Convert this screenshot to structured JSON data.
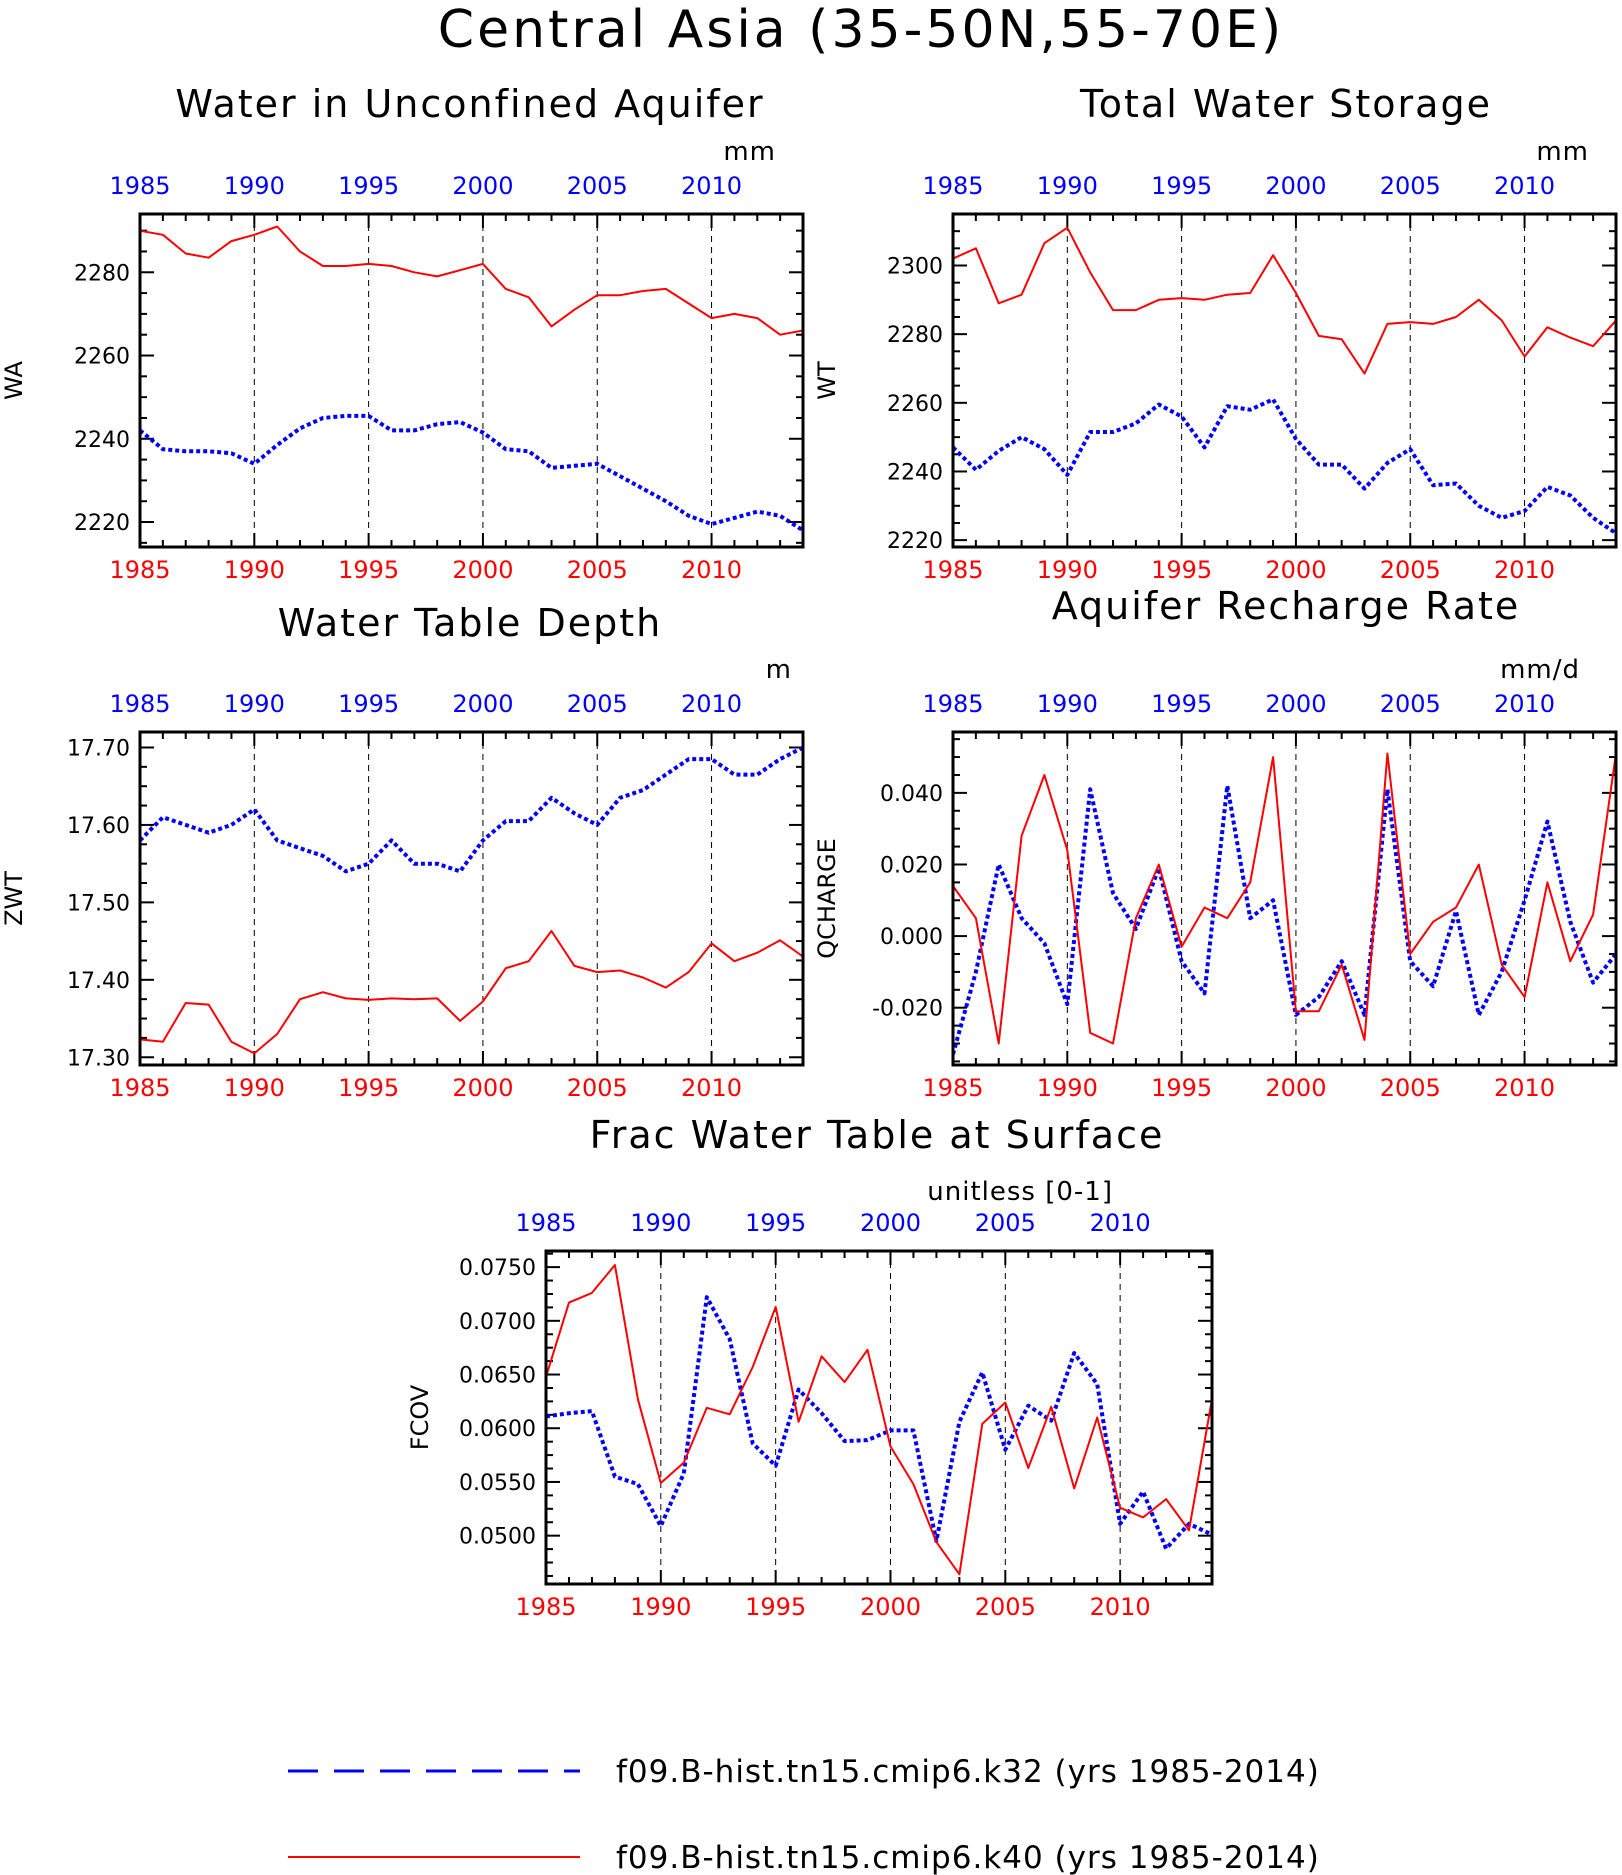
{
  "title": "Central Asia (35-50N,55-70E)",
  "colors": {
    "k32": "#0000ff",
    "k40": "#ff0000",
    "axis": "#000000"
  },
  "legend": {
    "k32": "f09.B-hist.tn15.cmip6.k32 (yrs 1985-2014)",
    "k40": "f09.B-hist.tn15.cmip6.k40 (yrs 1985-2014)"
  },
  "chart_data": [
    {
      "type": "line",
      "title": "Water in Unconfined Aquifer",
      "units": "mm",
      "ylabel": "WA",
      "x": [
        1985,
        1986,
        1987,
        1988,
        1989,
        1990,
        1991,
        1992,
        1993,
        1994,
        1995,
        1996,
        1997,
        1998,
        1999,
        2000,
        2001,
        2002,
        2003,
        2004,
        2005,
        2006,
        2007,
        2008,
        2009,
        2010,
        2011,
        2012,
        2013,
        2014
      ],
      "xlim": [
        1985,
        2014
      ],
      "xticks": [
        1985,
        1990,
        1995,
        2000,
        2005,
        2010
      ],
      "ylim": [
        2214,
        2294
      ],
      "yticks": [
        2220,
        2240,
        2260,
        2280
      ],
      "ytick_labels": [
        "2220",
        "2240",
        "2260",
        "2280"
      ],
      "series": [
        {
          "name": "f09.B-hist.tn15.cmip6.k32 (yrs 1985-2014)",
          "key": "k32",
          "style": "dashed",
          "values": [
            2242,
            2237.5,
            2237,
            2237,
            2236.5,
            2234,
            2238.5,
            2242.5,
            2245,
            2245.5,
            2245.5,
            2242,
            2242,
            2243.5,
            2244,
            2241.5,
            2237.5,
            2237,
            2233,
            2233.5,
            2234,
            2231,
            2228,
            2225,
            2221.5,
            2219.5,
            2221,
            2222.5,
            2221.5,
            2218
          ]
        },
        {
          "name": "f09.B-hist.tn15.cmip6.k40 (yrs 1985-2014)",
          "key": "k40",
          "style": "solid",
          "values": [
            2290,
            2289,
            2284.5,
            2283.5,
            2287.5,
            2289,
            2291,
            2285,
            2281.5,
            2281.5,
            2282,
            2281.5,
            2280,
            2279,
            2280.5,
            2282,
            2276,
            2274,
            2267,
            2271,
            2274.5,
            2274.5,
            2275.5,
            2276,
            2272.5,
            2269,
            2270,
            2269,
            2265,
            2266
          ]
        }
      ]
    },
    {
      "type": "line",
      "title": "Total Water Storage",
      "units": "mm",
      "ylabel": "WT",
      "x": [
        1985,
        1986,
        1987,
        1988,
        1989,
        1990,
        1991,
        1992,
        1993,
        1994,
        1995,
        1996,
        1997,
        1998,
        1999,
        2000,
        2001,
        2002,
        2003,
        2004,
        2005,
        2006,
        2007,
        2008,
        2009,
        2010,
        2011,
        2012,
        2013,
        2014
      ],
      "xlim": [
        1985,
        2014
      ],
      "xticks": [
        1985,
        1990,
        1995,
        2000,
        2005,
        2010
      ],
      "ylim": [
        2218,
        2315
      ],
      "yticks": [
        2220,
        2240,
        2260,
        2280,
        2300
      ],
      "ytick_labels": [
        "2220",
        "2240",
        "2260",
        "2280",
        "2300"
      ],
      "series": [
        {
          "name": "f09.B-hist.tn15.cmip6.k32 (yrs 1985-2014)",
          "key": "k32",
          "style": "dashed",
          "values": [
            2247,
            2240.5,
            2246,
            2250,
            2246.5,
            2239,
            2251.5,
            2251.5,
            2254,
            2259.5,
            2256,
            2247,
            2259,
            2258,
            2261,
            2249.5,
            2242,
            2242,
            2235,
            2242.5,
            2246.5,
            2236,
            2236.5,
            2230,
            2226.5,
            2228.5,
            2235.5,
            2233,
            2226.5,
            2222
          ]
        },
        {
          "name": "f09.B-hist.tn15.cmip6.k40 (yrs 1985-2014)",
          "key": "k40",
          "style": "solid",
          "values": [
            2302,
            2305,
            2289,
            2291.5,
            2306.5,
            2311,
            2298,
            2287,
            2287,
            2290,
            2290.5,
            2290,
            2291.5,
            2292,
            2303,
            2292,
            2279.5,
            2278.5,
            2268.5,
            2283,
            2283.5,
            2283,
            2285,
            2290,
            2284,
            2273.5,
            2282,
            2279,
            2276.5,
            2284
          ]
        }
      ]
    },
    {
      "type": "line",
      "title": "Water Table Depth",
      "units": "m",
      "ylabel": "ZWT",
      "x": [
        1985,
        1986,
        1987,
        1988,
        1989,
        1990,
        1991,
        1992,
        1993,
        1994,
        1995,
        1996,
        1997,
        1998,
        1999,
        2000,
        2001,
        2002,
        2003,
        2004,
        2005,
        2006,
        2007,
        2008,
        2009,
        2010,
        2011,
        2012,
        2013,
        2014
      ],
      "xlim": [
        1985,
        2014
      ],
      "xticks": [
        1985,
        1990,
        1995,
        2000,
        2005,
        2010
      ],
      "ylim": [
        17.29,
        17.72
      ],
      "yticks": [
        17.3,
        17.4,
        17.5,
        17.6,
        17.7
      ],
      "ytick_labels": [
        "17.30",
        "17.40",
        "17.50",
        "17.60",
        "17.70"
      ],
      "series": [
        {
          "name": "f09.B-hist.tn15.cmip6.k32 (yrs 1985-2014)",
          "key": "k32",
          "style": "dashed",
          "values": [
            17.58,
            17.61,
            17.6,
            17.59,
            17.6,
            17.62,
            17.58,
            17.57,
            17.56,
            17.54,
            17.55,
            17.58,
            17.55,
            17.55,
            17.54,
            17.58,
            17.605,
            17.605,
            17.635,
            17.615,
            17.6,
            17.635,
            17.645,
            17.665,
            17.685,
            17.685,
            17.665,
            17.665,
            17.685,
            17.7
          ]
        },
        {
          "name": "f09.B-hist.tn15.cmip6.k40 (yrs 1985-2014)",
          "key": "k40",
          "style": "solid",
          "values": [
            17.323,
            17.32,
            17.37,
            17.368,
            17.32,
            17.305,
            17.33,
            17.375,
            17.384,
            17.376,
            17.374,
            17.376,
            17.375,
            17.376,
            17.347,
            17.372,
            17.415,
            17.424,
            17.463,
            17.418,
            17.41,
            17.412,
            17.403,
            17.39,
            17.41,
            17.447,
            17.424,
            17.435,
            17.451,
            17.43
          ]
        }
      ]
    },
    {
      "type": "line",
      "title": "Aquifer Recharge Rate",
      "units": "mm/d",
      "ylabel": "QCHARGE",
      "x": [
        1985,
        1986,
        1987,
        1988,
        1989,
        1990,
        1991,
        1992,
        1993,
        1994,
        1995,
        1996,
        1997,
        1998,
        1999,
        2000,
        2001,
        2002,
        2003,
        2004,
        2005,
        2006,
        2007,
        2008,
        2009,
        2010,
        2011,
        2012,
        2013,
        2014
      ],
      "xlim": [
        1985,
        2014
      ],
      "xticks": [
        1985,
        1990,
        1995,
        2000,
        2005,
        2010
      ],
      "ylim": [
        -0.036,
        0.057
      ],
      "yticks": [
        -0.02,
        0.0,
        0.02,
        0.04
      ],
      "ytick_labels": [
        "-0.020",
        "0.000",
        "0.020",
        "0.040"
      ],
      "series": [
        {
          "name": "f09.B-hist.tn15.cmip6.k32 (yrs 1985-2014)",
          "key": "k32",
          "style": "dashed",
          "values": [
            -0.033,
            -0.01,
            0.02,
            0.005,
            -0.002,
            -0.019,
            0.041,
            0.012,
            0.002,
            0.019,
            -0.007,
            -0.016,
            0.042,
            0.005,
            0.01,
            -0.022,
            -0.017,
            -0.007,
            -0.022,
            0.041,
            -0.007,
            -0.014,
            0.007,
            -0.022,
            -0.01,
            0.01,
            0.032,
            0.004,
            -0.013,
            -0.005
          ]
        },
        {
          "name": "f09.B-hist.tn15.cmip6.k40 (yrs 1985-2014)",
          "key": "k40",
          "style": "solid",
          "values": [
            0.014,
            0.005,
            -0.03,
            0.028,
            0.045,
            0.024,
            -0.027,
            -0.03,
            0.005,
            0.02,
            -0.003,
            0.008,
            0.005,
            0.015,
            0.05,
            -0.021,
            -0.021,
            -0.008,
            -0.029,
            0.051,
            -0.005,
            0.004,
            0.008,
            0.02,
            -0.008,
            -0.017,
            0.015,
            -0.007,
            0.006,
            0.051
          ]
        }
      ]
    },
    {
      "type": "line",
      "title": "Frac Water Table at Surface",
      "units": "unitless [0-1]",
      "ylabel": "FCOV",
      "x": [
        1985,
        1986,
        1987,
        1988,
        1989,
        1990,
        1991,
        1992,
        1993,
        1994,
        1995,
        1996,
        1997,
        1998,
        1999,
        2000,
        2001,
        2002,
        2003,
        2004,
        2005,
        2006,
        2007,
        2008,
        2009,
        2010,
        2011,
        2012,
        2013,
        2014
      ],
      "xlim": [
        1985,
        2014
      ],
      "xticks": [
        1985,
        1990,
        1995,
        2000,
        2005,
        2010
      ],
      "ylim": [
        0.0455,
        0.0765
      ],
      "yticks": [
        0.05,
        0.055,
        0.06,
        0.065,
        0.07,
        0.075
      ],
      "ytick_labels": [
        "0.0500",
        "0.0550",
        "0.0600",
        "0.0650",
        "0.0700",
        "0.0750"
      ],
      "series": [
        {
          "name": "f09.B-hist.tn15.cmip6.k32 (yrs 1985-2014)",
          "key": "k32",
          "style": "dashed",
          "values": [
            0.0611,
            0.0614,
            0.0616,
            0.0555,
            0.0548,
            0.0509,
            0.0558,
            0.0722,
            0.0683,
            0.0586,
            0.0565,
            0.0636,
            0.0614,
            0.0588,
            0.0589,
            0.0598,
            0.0598,
            0.0495,
            0.0606,
            0.0652,
            0.058,
            0.0621,
            0.0607,
            0.067,
            0.0641,
            0.0511,
            0.0541,
            0.0488,
            0.0511,
            0.0501
          ]
        },
        {
          "name": "f09.B-hist.tn15.cmip6.k40 (yrs 1985-2014)",
          "key": "k40",
          "style": "solid",
          "values": [
            0.0648,
            0.0717,
            0.0726,
            0.0752,
            0.0627,
            0.0549,
            0.0568,
            0.0619,
            0.0613,
            0.0657,
            0.0713,
            0.0606,
            0.0667,
            0.0643,
            0.0673,
            0.0583,
            0.0548,
            0.0494,
            0.0464,
            0.0604,
            0.0624,
            0.0563,
            0.062,
            0.0544,
            0.061,
            0.0526,
            0.0517,
            0.0534,
            0.0505,
            0.0627
          ]
        }
      ]
    }
  ]
}
